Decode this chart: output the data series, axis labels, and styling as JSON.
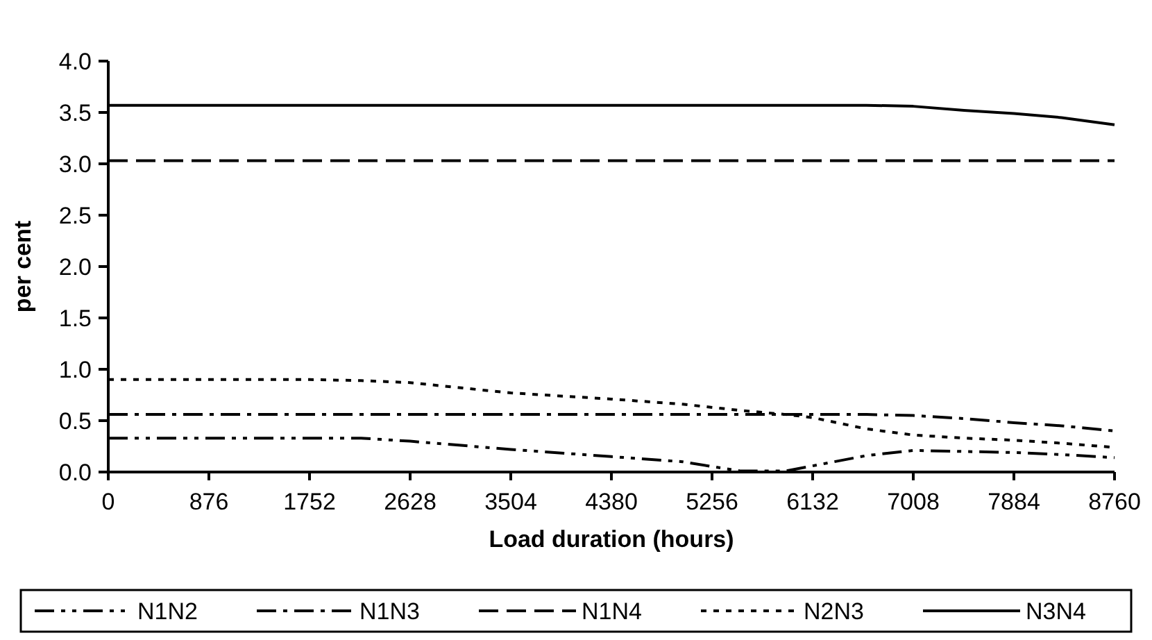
{
  "chart_data": {
    "type": "line",
    "xlabel": "Load duration (hours)",
    "ylabel": "per cent",
    "xlim": [
      0,
      8760
    ],
    "xticks": [
      0,
      876,
      1752,
      2628,
      3504,
      4380,
      5256,
      6132,
      7008,
      7884,
      8760
    ],
    "ylim": [
      0,
      4
    ],
    "yticks": [
      {
        "value": 0,
        "label": "0.0"
      },
      {
        "value": 0.5,
        "label": "0.5"
      },
      {
        "value": 1,
        "label": "1.0"
      },
      {
        "value": 1.5,
        "label": "1.5"
      },
      {
        "value": 2,
        "label": "2.0"
      },
      {
        "value": 2.5,
        "label": "2.5"
      },
      {
        "value": 3,
        "label": "3.0"
      },
      {
        "value": 3.5,
        "label": "3.5"
      },
      {
        "value": 4,
        "label": "4.0"
      }
    ],
    "grid": false,
    "legend": "bottom",
    "marker": "none",
    "x": [
      0,
      876,
      1752,
      2200,
      2628,
      3504,
      4380,
      5000,
      5500,
      5900,
      6132,
      6600,
      7008,
      7450,
      7884,
      8300,
      8760
    ],
    "series": [
      {
        "name": "N1N2",
        "color": "#000000",
        "line_style": "dashdotdot",
        "values": [
          0.33,
          0.33,
          0.33,
          0.33,
          0.3,
          0.22,
          0.15,
          0.1,
          0.01,
          0.01,
          0.06,
          0.16,
          0.21,
          0.2,
          0.19,
          0.17,
          0.14
        ]
      },
      {
        "name": "N1N3",
        "color": "#000000",
        "line_style": "dashdot",
        "values": [
          0.56,
          0.56,
          0.56,
          0.56,
          0.56,
          0.56,
          0.56,
          0.56,
          0.56,
          0.56,
          0.56,
          0.56,
          0.55,
          0.52,
          0.48,
          0.45,
          0.4
        ]
      },
      {
        "name": "N1N4",
        "color": "#000000",
        "line_style": "dashed",
        "values": [
          3.03,
          3.03,
          3.03,
          3.03,
          3.03,
          3.03,
          3.03,
          3.03,
          3.03,
          3.03,
          3.03,
          3.03,
          3.03,
          3.03,
          3.03,
          3.03,
          3.03
        ]
      },
      {
        "name": "N2N3",
        "color": "#000000",
        "line_style": "dotted",
        "values": [
          0.9,
          0.9,
          0.9,
          0.89,
          0.87,
          0.77,
          0.71,
          0.66,
          0.6,
          0.56,
          0.53,
          0.42,
          0.36,
          0.33,
          0.31,
          0.28,
          0.24
        ]
      },
      {
        "name": "N3N4",
        "color": "#000000",
        "line_style": "solid",
        "values": [
          3.57,
          3.57,
          3.57,
          3.57,
          3.57,
          3.57,
          3.57,
          3.57,
          3.57,
          3.57,
          3.57,
          3.57,
          3.56,
          3.52,
          3.49,
          3.45,
          3.38
        ]
      }
    ]
  }
}
